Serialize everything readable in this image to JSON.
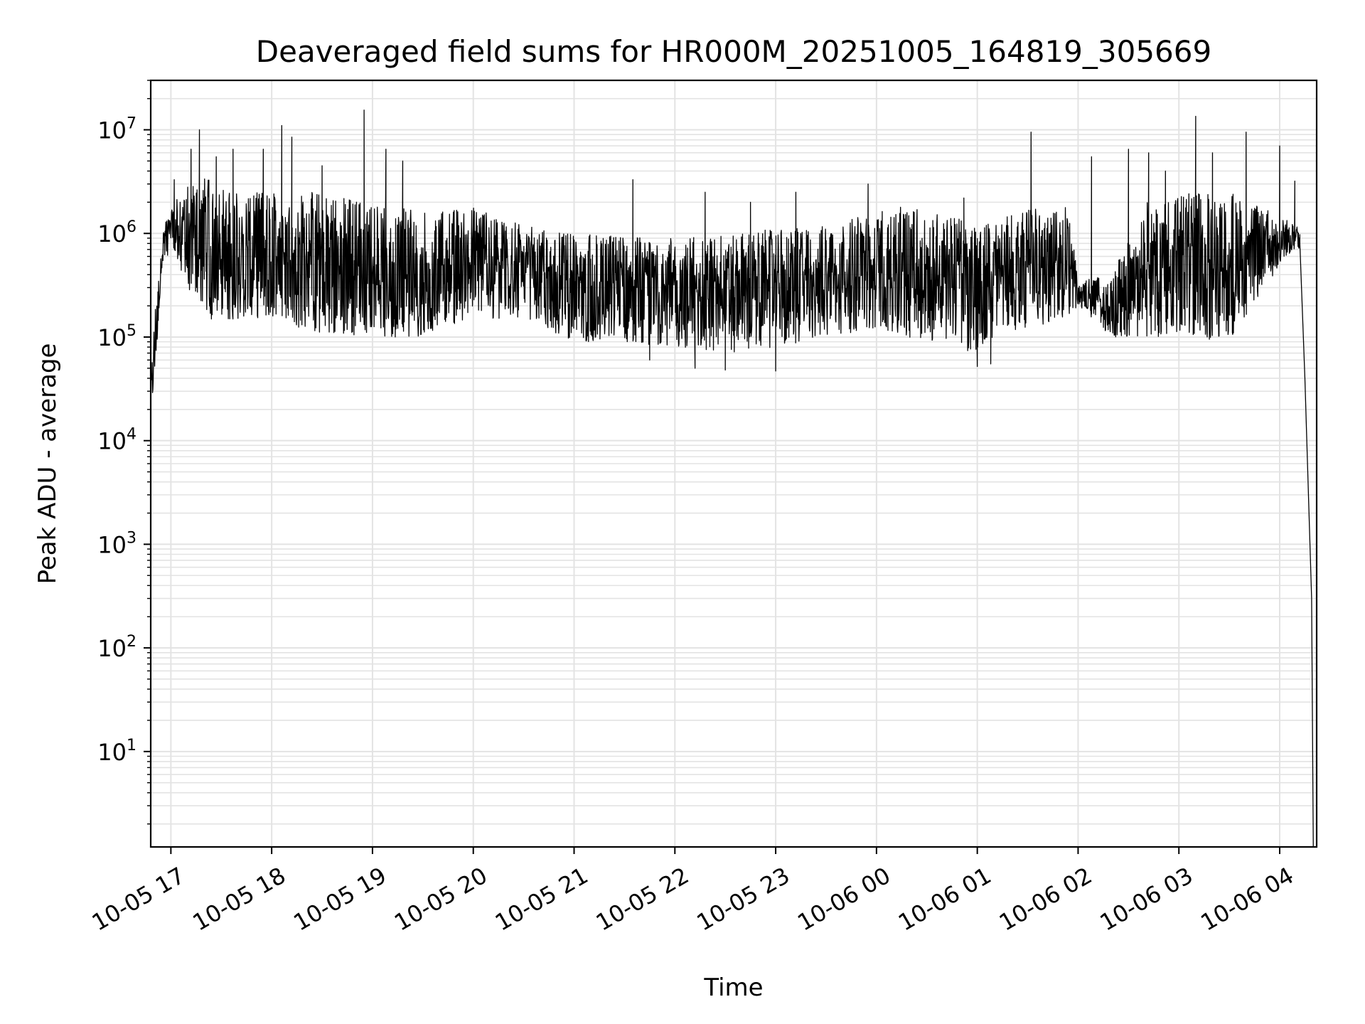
{
  "chart_data": {
    "type": "line",
    "title": "Deaveraged field sums for HR000M_20251005_164819_305669",
    "xlabel": "Time",
    "ylabel": "Peak ADU - average",
    "yscale": "log",
    "xlim": [
      "2025-10-05 16:48",
      "2025-10-06 04:22"
    ],
    "ylim": [
      1.2,
      30000000
    ],
    "grid": true,
    "x_ticks": [
      "10-05 17",
      "10-05 18",
      "10-05 19",
      "10-05 20",
      "10-05 21",
      "10-05 22",
      "10-05 23",
      "10-06 00",
      "10-06 01",
      "10-06 02",
      "10-06 03",
      "10-06 04"
    ],
    "y_ticks": [
      {
        "base": "10",
        "exp": "1",
        "value": 10
      },
      {
        "base": "10",
        "exp": "2",
        "value": 100
      },
      {
        "base": "10",
        "exp": "3",
        "value": 1000
      },
      {
        "base": "10",
        "exp": "4",
        "value": 10000
      },
      {
        "base": "10",
        "exp": "5",
        "value": 100000
      },
      {
        "base": "10",
        "exp": "6",
        "value": 1000000
      },
      {
        "base": "10",
        "exp": "7",
        "value": 10000000
      }
    ],
    "series": [
      {
        "color": "#000000",
        "profile": [
          {
            "t": "2025-10-05 16:48",
            "low": 16000,
            "high": 40000
          },
          {
            "t": "2025-10-05 16:51",
            "low": 60000,
            "high": 220000
          },
          {
            "t": "2025-10-05 16:55",
            "low": 500000,
            "high": 1100000
          },
          {
            "t": "2025-10-05 17:00",
            "low": 700000,
            "high": 1800000
          },
          {
            "t": "2025-10-05 17:10",
            "low": 300000,
            "high": 3000000
          },
          {
            "t": "2025-10-05 17:20",
            "low": 150000,
            "high": 3500000
          },
          {
            "t": "2025-10-05 17:40",
            "low": 140000,
            "high": 2500000
          },
          {
            "t": "2025-10-05 18:00",
            "low": 150000,
            "high": 2500000
          },
          {
            "t": "2025-10-05 18:30",
            "low": 100000,
            "high": 2500000
          },
          {
            "t": "2025-10-05 19:00",
            "low": 100000,
            "high": 2000000
          },
          {
            "t": "2025-10-05 19:30",
            "low": 100000,
            "high": 1600000
          },
          {
            "t": "2025-10-05 20:00",
            "low": 150000,
            "high": 1800000
          },
          {
            "t": "2025-10-05 20:30",
            "low": 150000,
            "high": 1200000
          },
          {
            "t": "2025-10-05 21:00",
            "low": 90000,
            "high": 1000000
          },
          {
            "t": "2025-10-05 21:30",
            "low": 90000,
            "high": 950000
          },
          {
            "t": "2025-10-05 22:00",
            "low": 80000,
            "high": 950000
          },
          {
            "t": "2025-10-05 22:30",
            "low": 70000,
            "high": 1000000
          },
          {
            "t": "2025-10-05 23:00",
            "low": 80000,
            "high": 1100000
          },
          {
            "t": "2025-10-05 23:30",
            "low": 100000,
            "high": 1200000
          },
          {
            "t": "2025-10-06 00:00",
            "low": 120000,
            "high": 1600000
          },
          {
            "t": "2025-10-06 00:15",
            "low": 100000,
            "high": 1800000
          },
          {
            "t": "2025-10-06 00:45",
            "low": 80000,
            "high": 1500000
          },
          {
            "t": "2025-10-06 01:00",
            "low": 70000,
            "high": 1200000
          },
          {
            "t": "2025-10-06 01:15",
            "low": 110000,
            "high": 1400000
          },
          {
            "t": "2025-10-06 01:30",
            "low": 120000,
            "high": 1800000
          },
          {
            "t": "2025-10-06 01:55",
            "low": 150000,
            "high": 1800000
          },
          {
            "t": "2025-10-06 02:00",
            "low": 200000,
            "high": 350000
          },
          {
            "t": "2025-10-06 02:20",
            "low": 100000,
            "high": 400000
          },
          {
            "t": "2025-10-06 02:40",
            "low": 100000,
            "high": 2000000
          },
          {
            "t": "2025-10-06 03:00",
            "low": 100000,
            "high": 2500000
          },
          {
            "t": "2025-10-06 03:30",
            "low": 90000,
            "high": 2500000
          },
          {
            "t": "2025-10-06 03:45",
            "low": 200000,
            "high": 2000000
          },
          {
            "t": "2025-10-06 04:00",
            "low": 500000,
            "high": 1600000
          },
          {
            "t": "2025-10-06 04:08",
            "low": 700000,
            "high": 1300000
          },
          {
            "t": "2025-10-06 04:12",
            "low": 600000,
            "high": 1100000
          }
        ],
        "spikes": [
          {
            "t": "2025-10-05 17:02",
            "v": 3300000
          },
          {
            "t": "2025-10-05 17:12",
            "v": 6500000
          },
          {
            "t": "2025-10-05 17:17",
            "v": 10000000
          },
          {
            "t": "2025-10-05 17:27",
            "v": 5500000
          },
          {
            "t": "2025-10-05 17:37",
            "v": 6500000
          },
          {
            "t": "2025-10-05 17:55",
            "v": 6500000
          },
          {
            "t": "2025-10-05 18:06",
            "v": 11000000
          },
          {
            "t": "2025-10-05 18:12",
            "v": 8500000
          },
          {
            "t": "2025-10-05 18:30",
            "v": 4500000
          },
          {
            "t": "2025-10-05 18:55",
            "v": 15500000
          },
          {
            "t": "2025-10-05 19:08",
            "v": 6500000
          },
          {
            "t": "2025-10-05 19:18",
            "v": 5000000
          },
          {
            "t": "2025-10-05 21:35",
            "v": 3300000
          },
          {
            "t": "2025-10-05 22:18",
            "v": 2500000
          },
          {
            "t": "2025-10-05 22:45",
            "v": 2000000
          },
          {
            "t": "2025-10-05 23:12",
            "v": 2500000
          },
          {
            "t": "2025-10-05 23:55",
            "v": 3000000
          },
          {
            "t": "2025-10-06 00:52",
            "v": 2200000
          },
          {
            "t": "2025-10-06 01:32",
            "v": 9500000
          },
          {
            "t": "2025-10-06 02:08",
            "v": 5500000
          },
          {
            "t": "2025-10-06 02:30",
            "v": 6500000
          },
          {
            "t": "2025-10-06 02:42",
            "v": 6000000
          },
          {
            "t": "2025-10-06 02:52",
            "v": 4000000
          },
          {
            "t": "2025-10-06 03:10",
            "v": 13500000
          },
          {
            "t": "2025-10-06 03:20",
            "v": 6000000
          },
          {
            "t": "2025-10-06 03:40",
            "v": 9500000
          },
          {
            "t": "2025-10-06 04:00",
            "v": 7000000
          },
          {
            "t": "2025-10-06 04:09",
            "v": 3200000
          }
        ],
        "dips": [
          {
            "t": "2025-10-05 21:45",
            "v": 60000
          },
          {
            "t": "2025-10-05 22:12",
            "v": 50000
          },
          {
            "t": "2025-10-05 22:30",
            "v": 48000
          },
          {
            "t": "2025-10-05 23:00",
            "v": 47000
          },
          {
            "t": "2025-10-06 01:00",
            "v": 52000
          },
          {
            "t": "2025-10-06 01:08",
            "v": 55000
          }
        ],
        "tail": [
          {
            "t": "2025-10-06 04:12",
            "v": 800000
          },
          {
            "t": "2025-10-06 04:15",
            "v": 40000
          },
          {
            "t": "2025-10-06 04:19",
            "v": 300
          },
          {
            "t": "2025-10-06 04:20",
            "v": 1.2
          }
        ]
      }
    ]
  }
}
